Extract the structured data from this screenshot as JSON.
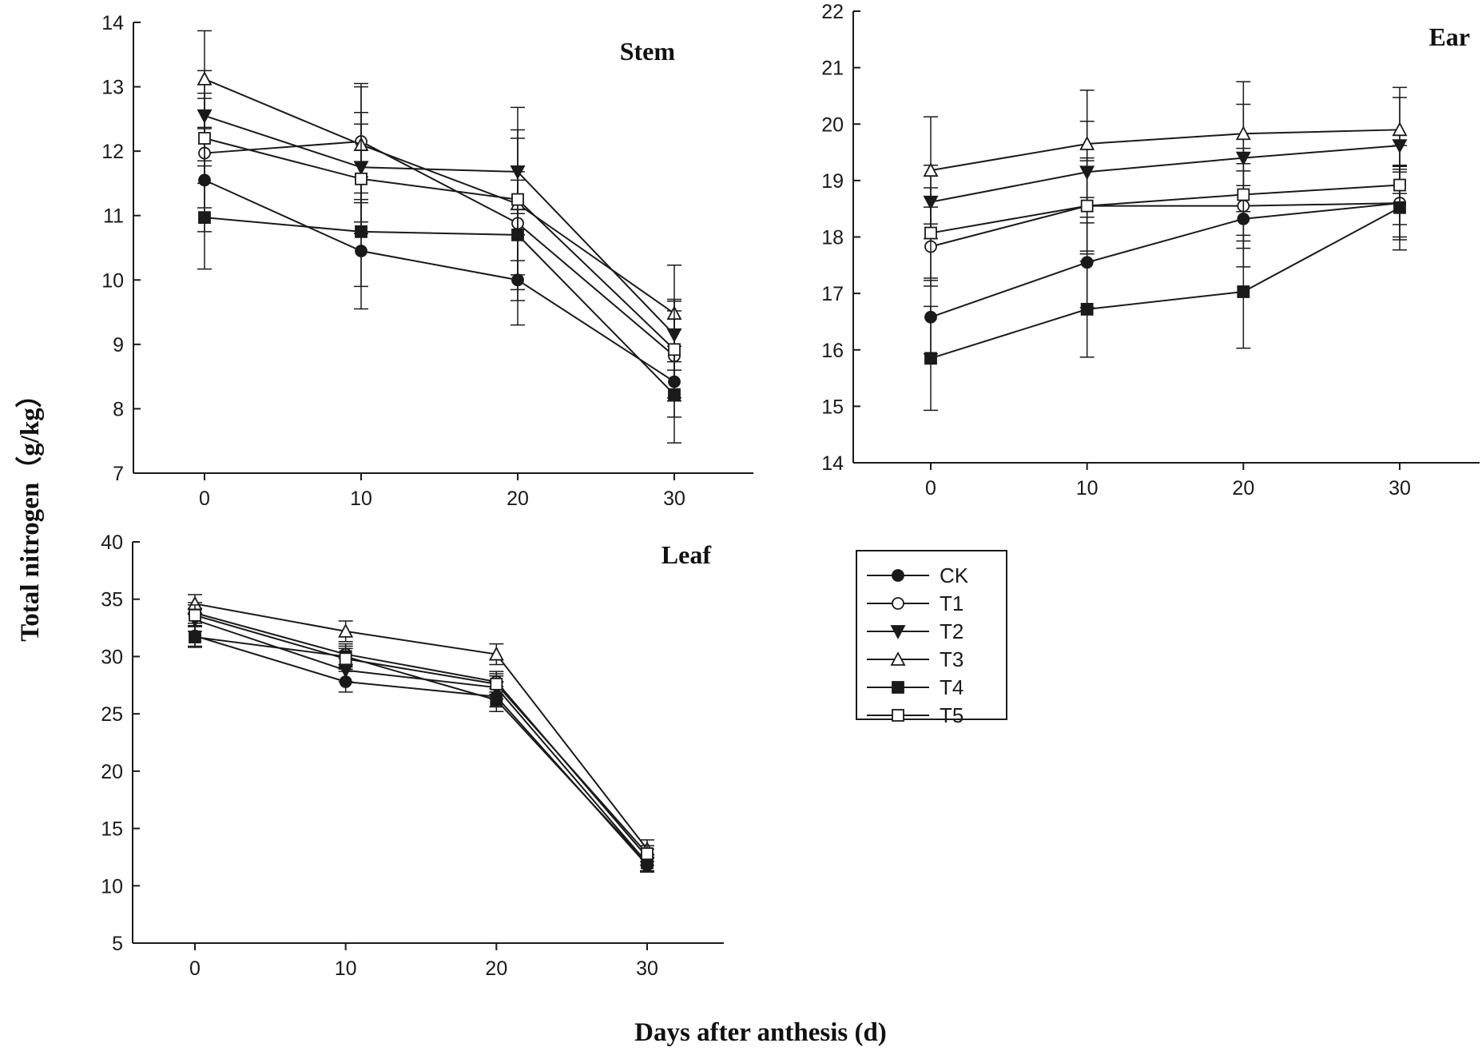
{
  "figure": {
    "ylabel": "Total nitrogen（g/kg）",
    "xlabel": "Days after anthesis (d)"
  },
  "legend": [
    {
      "name": "CK",
      "marker": "circle",
      "filled": true
    },
    {
      "name": "T1",
      "marker": "circle",
      "filled": false
    },
    {
      "name": "T2",
      "marker": "triangle-down",
      "filled": true
    },
    {
      "name": "T3",
      "marker": "triangle-up",
      "filled": false
    },
    {
      "name": "T4",
      "marker": "square",
      "filled": true
    },
    {
      "name": "T5",
      "marker": "square",
      "filled": false
    }
  ],
  "colors": {
    "ink": "#1a1a1a",
    "background": "#ffffff"
  },
  "chart_data": [
    {
      "type": "line",
      "title": "Stem",
      "x": [
        0,
        10,
        20,
        30
      ],
      "xlim": [
        -5,
        35
      ],
      "xticks": [
        0,
        10,
        20,
        30
      ],
      "ylim": [
        7,
        14
      ],
      "yticks": [
        7,
        8,
        9,
        10,
        11,
        12,
        13,
        14
      ],
      "series": [
        {
          "name": "CK",
          "values": [
            11.55,
            10.45,
            10.0,
            8.42
          ],
          "errors": [
            0.8,
            0.9,
            0.7,
            0.55
          ]
        },
        {
          "name": "T1",
          "values": [
            11.97,
            12.15,
            10.88,
            8.82
          ],
          "errors": [
            0.85,
            0.9,
            0.8,
            0.7
          ]
        },
        {
          "name": "T2",
          "values": [
            12.55,
            11.75,
            11.68,
            9.15
          ],
          "errors": [
            0.7,
            0.85,
            0.65,
            0.55
          ]
        },
        {
          "name": "T3",
          "values": [
            13.12,
            12.1,
            11.18,
            9.48
          ],
          "errors": [
            0.75,
            0.9,
            1.5,
            0.75
          ]
        },
        {
          "name": "T4",
          "values": [
            10.97,
            10.75,
            10.7,
            8.22
          ],
          "errors": [
            0.8,
            0.85,
            0.85,
            0.75
          ]
        },
        {
          "name": "T5",
          "values": [
            12.2,
            11.57,
            11.25,
            8.92
          ],
          "errors": [
            0.7,
            0.85,
            0.95,
            0.75
          ]
        }
      ]
    },
    {
      "type": "line",
      "title": "Ear",
      "x": [
        0,
        10,
        20,
        30
      ],
      "xlim": [
        -5,
        30.5
      ],
      "xticks": [
        0,
        10,
        20,
        30
      ],
      "ylim": [
        14,
        22
      ],
      "yticks": [
        14,
        15,
        16,
        17,
        18,
        19,
        20,
        21,
        22
      ],
      "series": [
        {
          "name": "CK",
          "values": [
            16.58,
            17.55,
            18.32,
            18.6
          ],
          "errors": [
            0.65,
            0.8,
            0.85,
            0.6
          ]
        },
        {
          "name": "T1",
          "values": [
            17.83,
            18.55,
            18.55,
            18.6
          ],
          "errors": [
            0.7,
            0.8,
            0.75,
            0.65
          ]
        },
        {
          "name": "T2",
          "values": [
            18.62,
            19.15,
            19.4,
            19.62
          ],
          "errors": [
            0.65,
            0.9,
            0.95,
            0.85
          ]
        },
        {
          "name": "T3",
          "values": [
            19.18,
            19.65,
            19.83,
            19.9
          ],
          "errors": [
            0.95,
            0.95,
            0.92,
            0.75
          ]
        },
        {
          "name": "T4",
          "values": [
            15.85,
            16.72,
            17.03,
            18.52
          ],
          "errors": [
            0.92,
            0.85,
            1.0,
            0.75
          ]
        },
        {
          "name": "T5",
          "values": [
            18.07,
            18.55,
            18.75,
            18.92
          ],
          "errors": [
            0.8,
            0.85,
            0.82,
            0.7
          ]
        }
      ]
    },
    {
      "type": "line",
      "title": "Leaf",
      "x": [
        0,
        10,
        20,
        30
      ],
      "xlim": [
        -5,
        35
      ],
      "xticks": [
        0,
        10,
        20,
        30
      ],
      "ylim": [
        5,
        40
      ],
      "yticks": [
        5,
        10,
        15,
        20,
        25,
        30,
        35,
        40
      ],
      "series": [
        {
          "name": "CK",
          "values": [
            31.8,
            27.8,
            26.5,
            11.8
          ],
          "errors": [
            0.9,
            0.9,
            0.9,
            0.6
          ]
        },
        {
          "name": "T1",
          "values": [
            33.8,
            30.2,
            27.8,
            12.5
          ],
          "errors": [
            0.9,
            0.9,
            0.9,
            0.7
          ]
        },
        {
          "name": "T2",
          "values": [
            33.2,
            28.8,
            27.3,
            12.0
          ],
          "errors": [
            1.0,
            1.0,
            1.0,
            0.7
          ]
        },
        {
          "name": "T3",
          "values": [
            34.6,
            32.2,
            30.2,
            13.2
          ],
          "errors": [
            0.8,
            0.9,
            0.9,
            0.8
          ]
        },
        {
          "name": "T4",
          "values": [
            31.7,
            30.0,
            26.2,
            12.0
          ],
          "errors": [
            0.9,
            0.9,
            1.0,
            0.7
          ]
        },
        {
          "name": "T5",
          "values": [
            33.6,
            29.8,
            27.6,
            12.8
          ],
          "errors": [
            0.9,
            0.9,
            0.9,
            0.7
          ]
        }
      ]
    }
  ]
}
